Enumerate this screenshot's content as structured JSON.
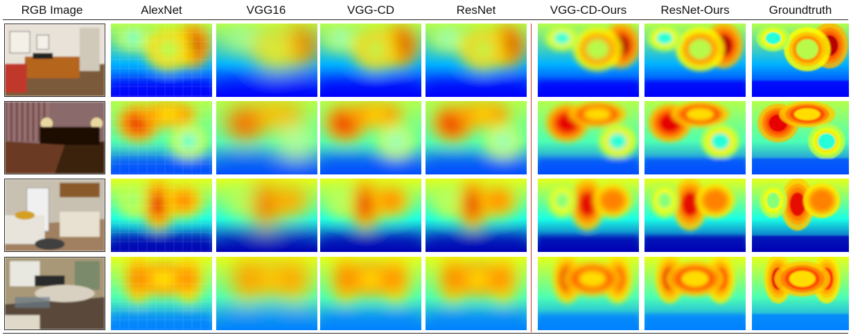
{
  "figure": {
    "columns": [
      {
        "key": "rgb",
        "label": "RGB  Image"
      },
      {
        "key": "alexnet",
        "label": "AlexNet"
      },
      {
        "key": "vgg16",
        "label": "VGG16"
      },
      {
        "key": "vggcd",
        "label": "VGG-CD"
      },
      {
        "key": "resnet",
        "label": "ResNet"
      },
      {
        "key": "vggcd_ours",
        "label": "VGG-CD-Ours"
      },
      {
        "key": "resnet_ours",
        "label": "ResNet-Ours"
      },
      {
        "key": "gt",
        "label": "Groundtruth"
      }
    ],
    "rows": [
      {
        "scene": "office"
      },
      {
        "scene": "bedroom"
      },
      {
        "scene": "kitchen"
      },
      {
        "scene": "living-room"
      }
    ],
    "colors": {
      "near": "#1a2fd0",
      "far": "#b00000",
      "mid": "#00c8ff"
    }
  }
}
